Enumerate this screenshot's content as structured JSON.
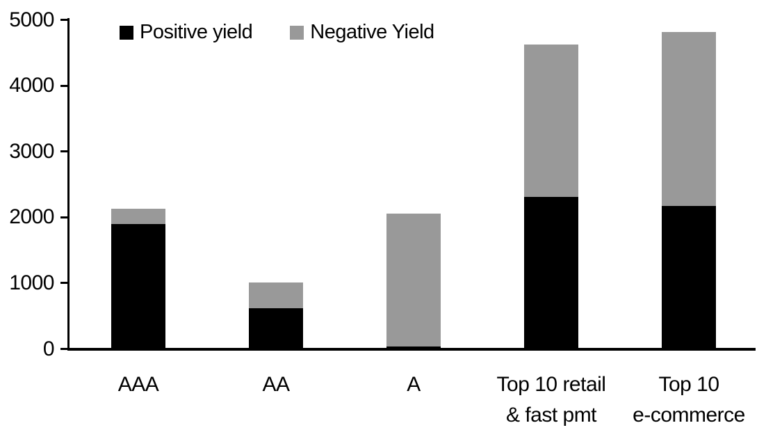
{
  "chart_data": {
    "type": "bar",
    "stacked": true,
    "title": "",
    "xlabel": "",
    "ylabel": "",
    "categories": [
      "AAA",
      "AA",
      "A",
      "Top 10 retail\n& fast pmt",
      "Top 10\ne-commerce"
    ],
    "series": [
      {
        "name": "Positive yield",
        "color": "#000000",
        "values": [
          1900,
          620,
          40,
          2310,
          2170
        ]
      },
      {
        "name": "Negative Yield",
        "color": "#999999",
        "values": [
          230,
          385,
          2020,
          2310,
          2650
        ]
      }
    ],
    "totals": [
      2130,
      1005,
      2060,
      4620,
      4820
    ],
    "ylim": [
      0,
      5000
    ],
    "yticks": [
      0,
      1000,
      2000,
      3000,
      4000,
      5000
    ],
    "legend_position": "top",
    "grid": false,
    "background_color": "#ffffff",
    "axis_color": "#000000"
  }
}
